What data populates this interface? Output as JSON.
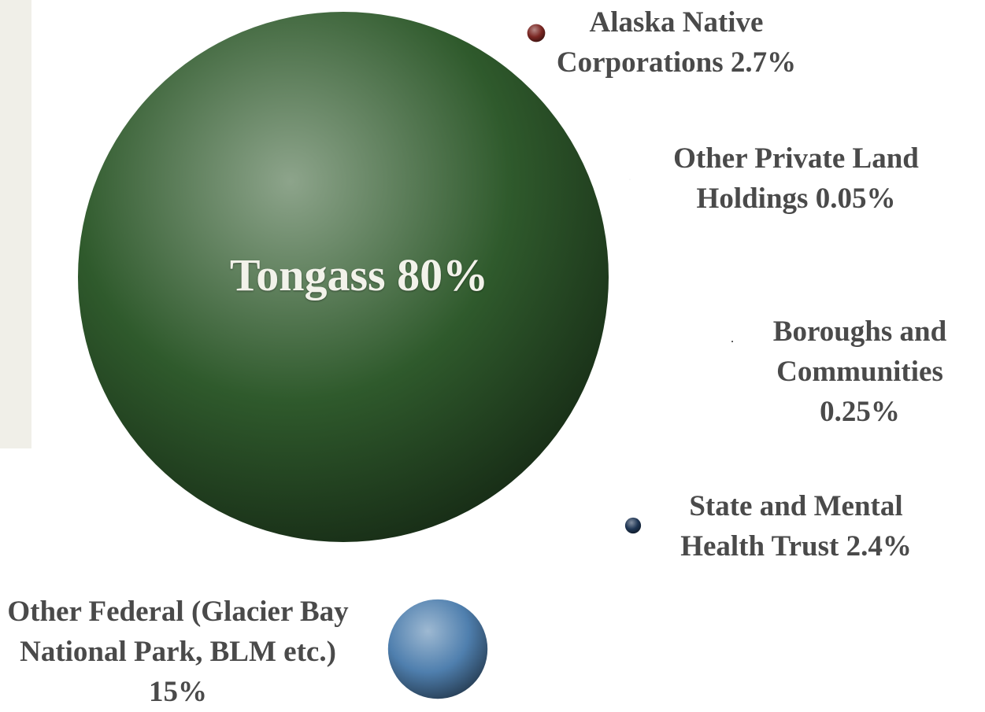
{
  "chart_data": {
    "type": "bubble",
    "categories": [
      "Tongass",
      "Alaska Native Corporations",
      "Other Private Land Holdings",
      "Boroughs and Communities",
      "State and Mental Health Trust",
      "Other Federal (Glacier Bay National Park, BLM etc.)"
    ],
    "values": [
      80,
      2.7,
      0.05,
      0.25,
      2.4,
      15
    ],
    "value_labels": [
      "80%",
      "2.7%",
      "0.05%",
      "0.25%",
      "2.4%",
      "15%"
    ],
    "colors": [
      "#2f5a2c",
      "#7a2622",
      "#555555",
      "#222222",
      "#1f3654",
      "#4f7fae"
    ]
  }
}
